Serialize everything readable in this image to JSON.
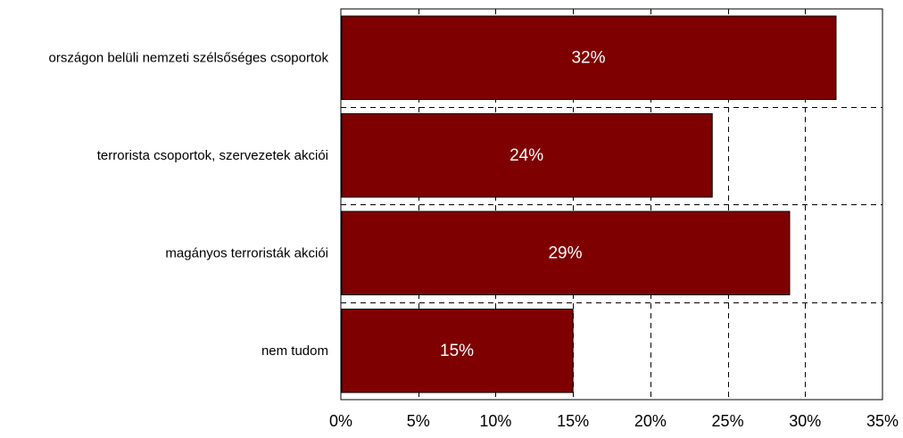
{
  "chart_data": {
    "type": "bar",
    "orientation": "horizontal",
    "categories": [
      "országon belüli nemzeti szélsőséges csoportok",
      "terrorista csoportok, szervezetek akciói",
      "magányos terroristák akciói",
      "nem tudom"
    ],
    "values": [
      32,
      24,
      29,
      15
    ],
    "data_labels": [
      "32%",
      "24%",
      "29%",
      "15%"
    ],
    "xlim": [
      0,
      35
    ],
    "xticks": [
      0,
      5,
      10,
      15,
      20,
      25,
      30,
      35
    ],
    "xtick_labels": [
      "0%",
      "5%",
      "10%",
      "15%",
      "20%",
      "25%",
      "30%",
      "35%"
    ],
    "title": "",
    "xlabel": "",
    "ylabel": "",
    "grid": "dashed",
    "legend": "none",
    "colors": {
      "bar_fill": "#7f0000",
      "bar_stroke": "#000000",
      "grid": "#000000",
      "data_label": "#ffffff"
    }
  }
}
